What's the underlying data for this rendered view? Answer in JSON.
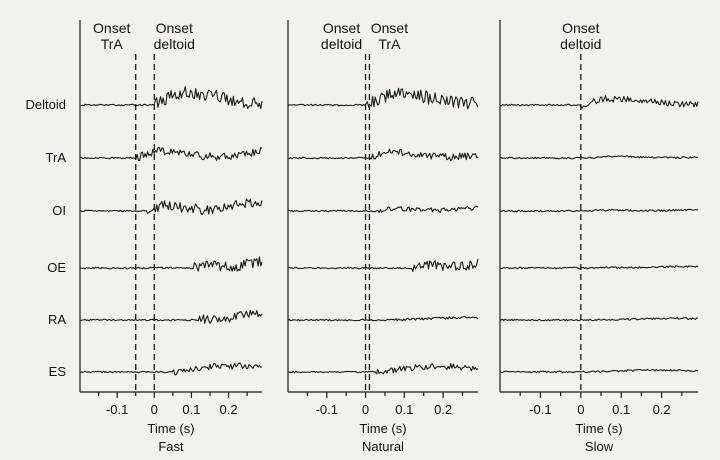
{
  "chart_data": [
    {
      "type": "line",
      "title": "",
      "condition_label": "Fast",
      "xlabel": "Time (s)",
      "xlim": [
        -0.2,
        0.29
      ],
      "xticks": [
        -0.1,
        0,
        0.1,
        0.2
      ],
      "tick_labels": [
        "-0.1",
        "0",
        "0.1",
        "0.2"
      ],
      "muscles": [
        "Deltoid",
        "TrA",
        "OI",
        "OE",
        "RA",
        "ES"
      ],
      "onsets": [
        {
          "label_lines": [
            "Onset",
            "TrA"
          ],
          "time": -0.05
        },
        {
          "label_lines": [
            "Onset",
            "deltoid"
          ],
          "time": 0.0
        }
      ],
      "series": [
        {
          "name": "Deltoid",
          "onset": 0.0,
          "amplitude": 2.2
        },
        {
          "name": "TrA",
          "onset": -0.05,
          "amplitude": 1.3
        },
        {
          "name": "OI",
          "onset": -0.02,
          "amplitude": 1.7
        },
        {
          "name": "OE",
          "onset": 0.1,
          "amplitude": 1.8
        },
        {
          "name": "RA",
          "onset": 0.12,
          "amplitude": 1.5
        },
        {
          "name": "ES",
          "onset": 0.05,
          "amplitude": 1.1
        }
      ]
    },
    {
      "type": "line",
      "title": "",
      "condition_label": "Natural",
      "xlabel": "Time (s)",
      "xlim": [
        -0.2,
        0.29
      ],
      "xticks": [
        -0.1,
        0,
        0.1,
        0.2
      ],
      "tick_labels": [
        "-0.1",
        "0",
        "0.1",
        "0.2"
      ],
      "muscles": [
        "Deltoid",
        "TrA",
        "OI",
        "OE",
        "RA",
        "ES"
      ],
      "onsets": [
        {
          "label_lines": [
            "Onset",
            "deltoid"
          ],
          "time": 0.0
        },
        {
          "label_lines": [
            "Onset",
            "TrA"
          ],
          "time": 0.01
        }
      ],
      "series": [
        {
          "name": "Deltoid",
          "onset": 0.0,
          "amplitude": 2.0
        },
        {
          "name": "TrA",
          "onset": 0.01,
          "amplitude": 1.2
        },
        {
          "name": "OI",
          "onset": 0.03,
          "amplitude": 0.8
        },
        {
          "name": "OE",
          "onset": 0.12,
          "amplitude": 1.6
        },
        {
          "name": "RA",
          "onset": 0.05,
          "amplitude": 0.4
        },
        {
          "name": "ES",
          "onset": 0.02,
          "amplitude": 1.0
        }
      ]
    },
    {
      "type": "line",
      "title": "",
      "condition_label": "Slow",
      "xlabel": "Time (s)",
      "xlim": [
        -0.2,
        0.29
      ],
      "xticks": [
        -0.1,
        0,
        0.1,
        0.2
      ],
      "tick_labels": [
        "-0.1",
        "0",
        "0.1",
        "0.2"
      ],
      "muscles": [
        "Deltoid",
        "TrA",
        "OI",
        "OE",
        "RA",
        "ES"
      ],
      "onsets": [
        {
          "label_lines": [
            "Onset",
            "deltoid"
          ],
          "time": 0.0
        }
      ],
      "series": [
        {
          "name": "Deltoid",
          "onset": 0.0,
          "amplitude": 1.1
        },
        {
          "name": "TrA",
          "onset": 0.02,
          "amplitude": 0.3
        },
        {
          "name": "OI",
          "onset": 0.02,
          "amplitude": 0.3
        },
        {
          "name": "OE",
          "onset": 0.02,
          "amplitude": 0.3
        },
        {
          "name": "RA",
          "onset": 0.02,
          "amplitude": 0.3
        },
        {
          "name": "ES",
          "onset": 0.02,
          "amplitude": 0.3
        }
      ]
    }
  ]
}
